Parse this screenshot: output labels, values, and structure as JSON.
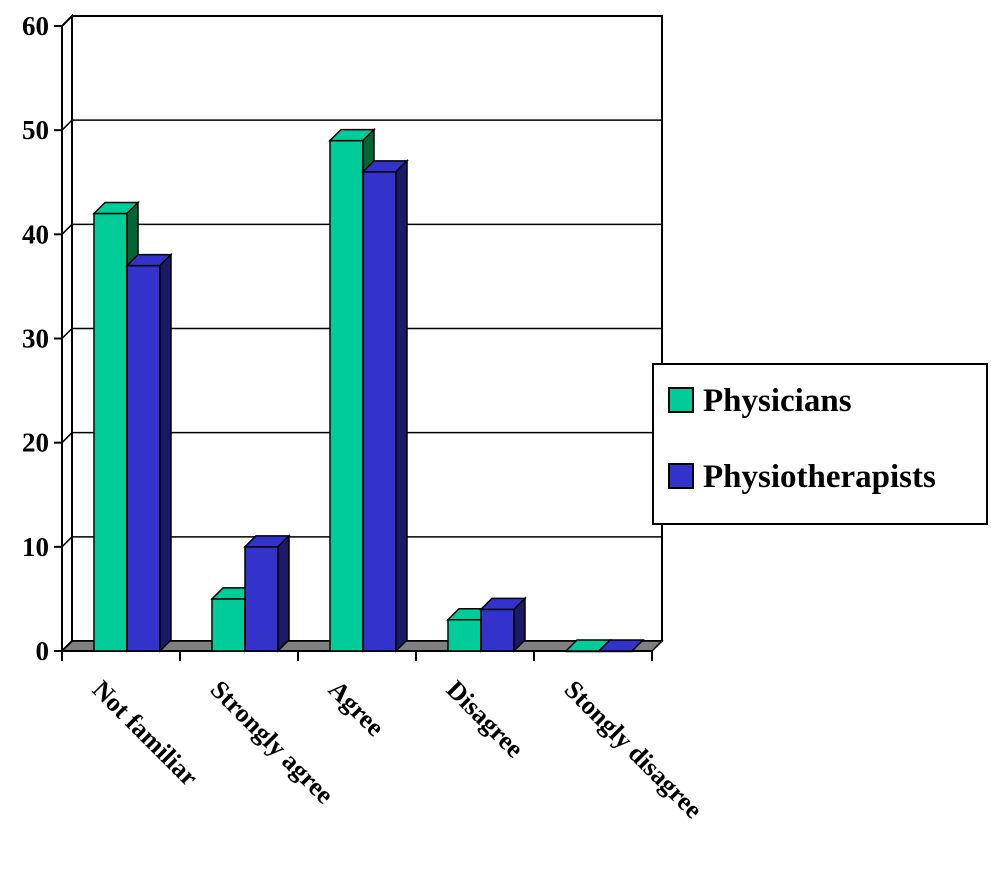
{
  "chart_data": {
    "type": "bar",
    "style": "3d-clustered-column",
    "categories": [
      "Not familiar",
      "Strongly agree",
      "Agree",
      "Disagree",
      "Stongly disagree"
    ],
    "series": [
      {
        "name": "Physicians",
        "values": [
          42,
          5,
          49,
          3,
          0
        ],
        "color": "#00CC99",
        "side_color": "#006633"
      },
      {
        "name": "Physiotherapists",
        "values": [
          37,
          10,
          46,
          4,
          0
        ],
        "color": "#3333CC",
        "side_color": "#1A1A66"
      }
    ],
    "title": "",
    "xlabel": "",
    "ylabel": "",
    "ylim": [
      0,
      60
    ],
    "yticks": [
      0,
      10,
      20,
      30,
      40,
      50,
      60
    ],
    "grid": true,
    "floor_color": "#808080",
    "legend": {
      "placement": "right"
    }
  }
}
